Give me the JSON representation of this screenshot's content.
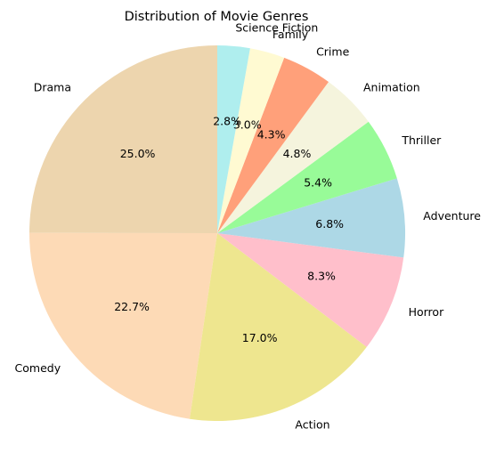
{
  "chart_data": {
    "type": "pie",
    "title": "Distribution of Movie Genres",
    "start_angle_deg": 90,
    "direction": "counterclockwise",
    "slices": [
      {
        "label": "Drama",
        "value": 25.0,
        "pct_text": "25.0%",
        "color": "#EDD5AE"
      },
      {
        "label": "Comedy",
        "value": 22.7,
        "pct_text": "22.7%",
        "color": "#FDDAB6"
      },
      {
        "label": "Action",
        "value": 17.0,
        "pct_text": "17.0%",
        "color": "#EEE68F"
      },
      {
        "label": "Horror",
        "value": 8.3,
        "pct_text": "8.3%",
        "color": "#FFBFCB"
      },
      {
        "label": "Adventure",
        "value": 6.8,
        "pct_text": "6.8%",
        "color": "#ADD8E6"
      },
      {
        "label": "Thriller",
        "value": 5.4,
        "pct_text": "5.4%",
        "color": "#98FB98"
      },
      {
        "label": "Animation",
        "value": 4.8,
        "pct_text": "4.8%",
        "color": "#F5F4DD"
      },
      {
        "label": "Crime",
        "value": 4.3,
        "pct_text": "4.3%",
        "color": "#FFA07A"
      },
      {
        "label": "Family",
        "value": 3.0,
        "pct_text": "3.0%",
        "color": "#FFFAD2"
      },
      {
        "label": "Science Fiction",
        "value": 2.8,
        "pct_text": "2.8%",
        "color": "#AFEEEE"
      }
    ]
  }
}
